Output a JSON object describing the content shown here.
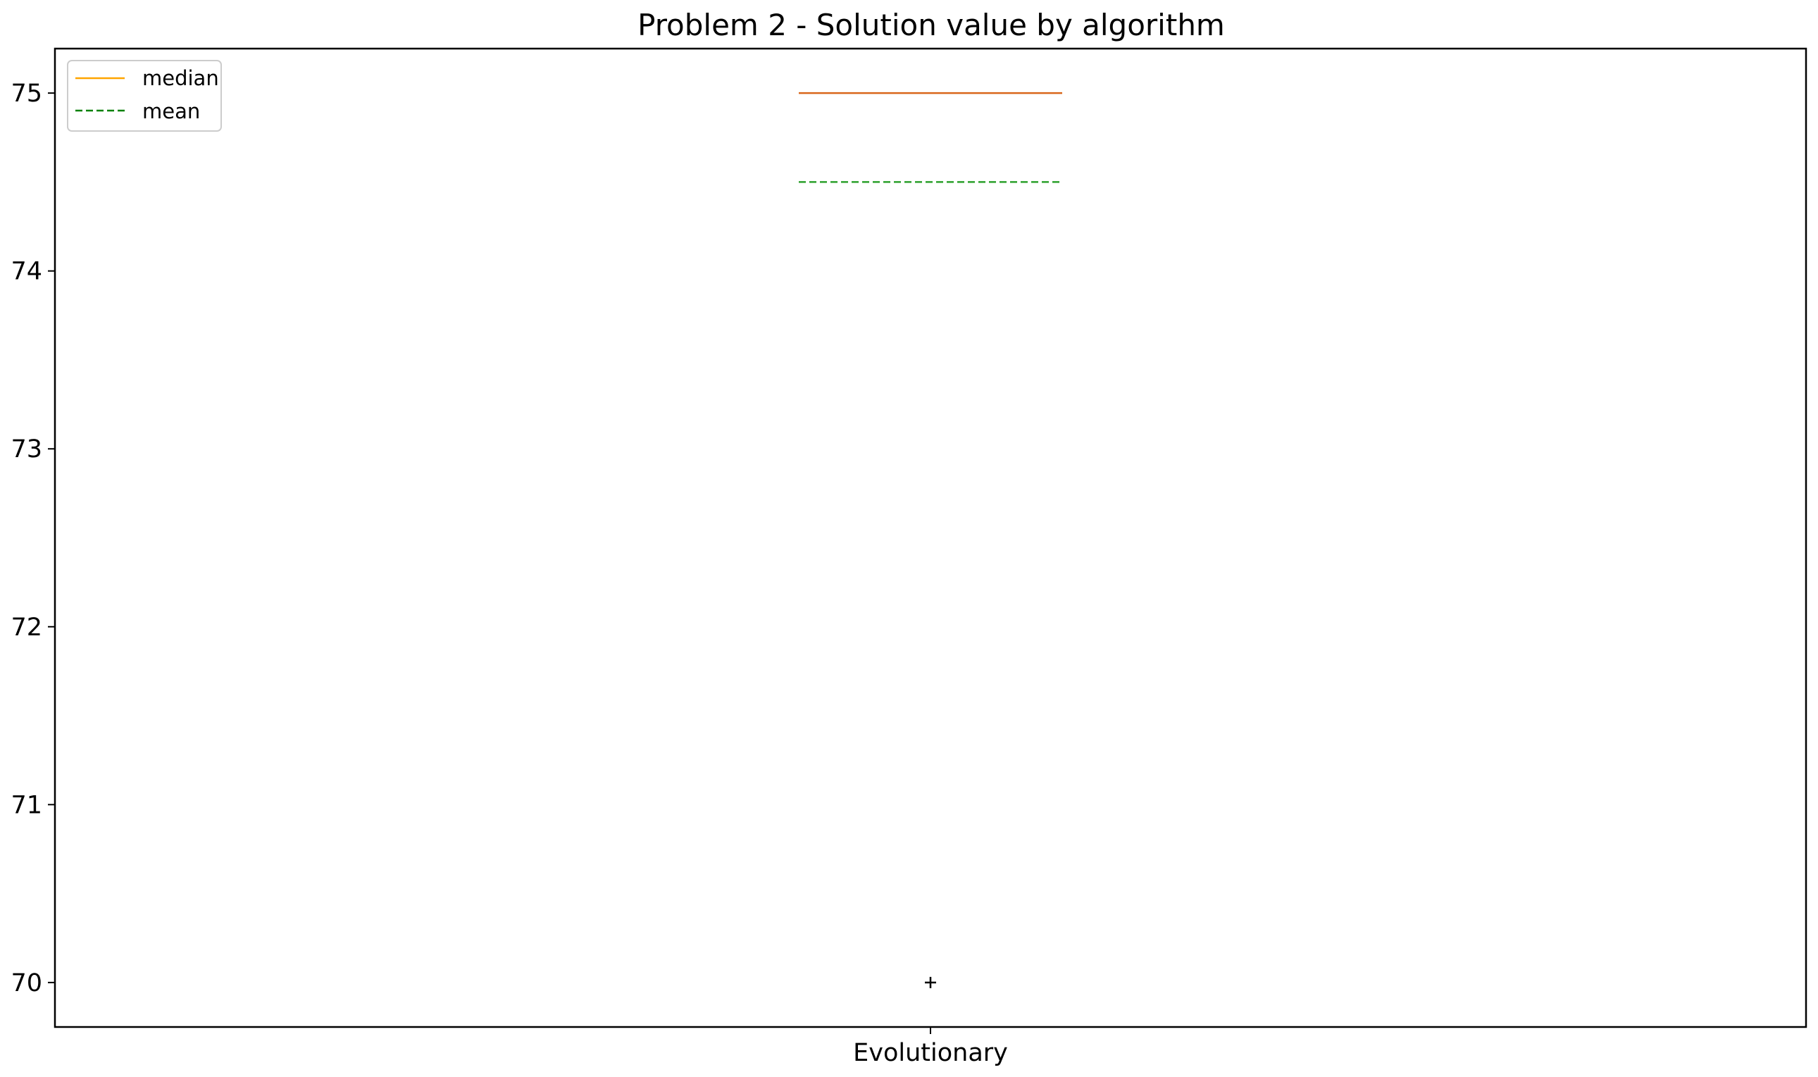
{
  "chart_data": {
    "type": "box",
    "title": "Problem 2 - Solution value by algorithm",
    "xlabel": "",
    "ylabel": "",
    "categories": [
      "Evolutionary"
    ],
    "ylim": [
      69.75,
      75.25
    ],
    "yticks": [
      "70",
      "71",
      "72",
      "73",
      "74",
      "75"
    ],
    "ytick_values": [
      70,
      71,
      72,
      73,
      74,
      75
    ],
    "series": [
      {
        "name": "Evolutionary",
        "median": 75,
        "mean": 74.5,
        "q1": 75,
        "q3": 75,
        "whisker_low": 75,
        "whisker_high": 75,
        "outliers": [
          70
        ]
      }
    ],
    "legend": {
      "position": "top-left",
      "entries": [
        {
          "label": "median",
          "style": "solid",
          "color": "#ffa500"
        },
        {
          "label": "mean",
          "style": "dashed",
          "color": "#008000"
        }
      ]
    },
    "colors": {
      "median_line": "#d9661a",
      "mean_line": "#2ca02c",
      "outlier": "#000000",
      "axes": "#000000"
    }
  }
}
